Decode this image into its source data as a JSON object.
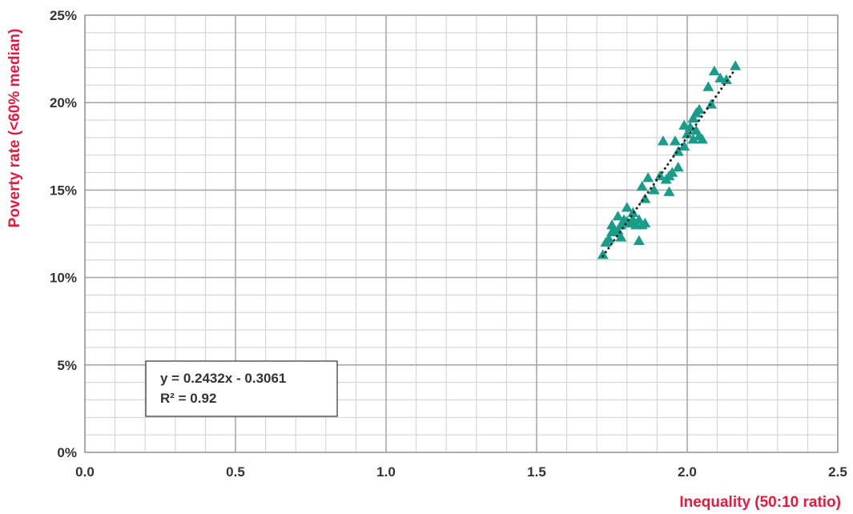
{
  "chart_data": {
    "type": "scatter",
    "xlabel": "Inequality (50:10 ratio)",
    "ylabel": "Poverty rate (<60% median)",
    "xlim": [
      0,
      2.5
    ],
    "ylim": [
      0,
      0.25
    ],
    "x_ticks": [
      "0.0",
      "0.5",
      "1.0",
      "1.5",
      "2.0",
      "2.5"
    ],
    "y_ticks": [
      "0%",
      "5%",
      "10%",
      "15%",
      "20%",
      "25%"
    ],
    "x_tick_values": [
      0,
      0.5,
      1.0,
      1.5,
      2.0,
      2.5
    ],
    "y_tick_values": [
      0,
      0.05,
      0.1,
      0.15,
      0.2,
      0.25
    ],
    "grid": "on (major and minor)",
    "marker": "triangle",
    "colors": {
      "points": "#1a9c8a",
      "axis_title": "#e8193c",
      "trendline": "#222222",
      "grid": "#c8c8c8"
    },
    "points": [
      [
        1.72,
        0.113
      ],
      [
        1.73,
        0.12
      ],
      [
        1.74,
        0.122
      ],
      [
        1.75,
        0.126
      ],
      [
        1.75,
        0.13
      ],
      [
        1.76,
        0.126
      ],
      [
        1.77,
        0.127
      ],
      [
        1.78,
        0.13
      ],
      [
        1.77,
        0.135
      ],
      [
        1.78,
        0.123
      ],
      [
        1.79,
        0.133
      ],
      [
        1.8,
        0.132
      ],
      [
        1.8,
        0.14
      ],
      [
        1.81,
        0.131
      ],
      [
        1.82,
        0.133
      ],
      [
        1.82,
        0.137
      ],
      [
        1.83,
        0.13
      ],
      [
        1.84,
        0.121
      ],
      [
        1.84,
        0.133
      ],
      [
        1.85,
        0.13
      ],
      [
        1.86,
        0.131
      ],
      [
        1.85,
        0.152
      ],
      [
        1.86,
        0.145
      ],
      [
        1.87,
        0.157
      ],
      [
        1.89,
        0.15
      ],
      [
        1.91,
        0.158
      ],
      [
        1.92,
        0.178
      ],
      [
        1.93,
        0.156
      ],
      [
        1.94,
        0.158
      ],
      [
        1.94,
        0.149
      ],
      [
        1.95,
        0.16
      ],
      [
        1.96,
        0.178
      ],
      [
        1.97,
        0.163
      ],
      [
        1.97,
        0.172
      ],
      [
        1.99,
        0.175
      ],
      [
        1.99,
        0.187
      ],
      [
        2.0,
        0.182
      ],
      [
        2.01,
        0.186
      ],
      [
        2.02,
        0.179
      ],
      [
        2.02,
        0.191
      ],
      [
        2.03,
        0.184
      ],
      [
        2.03,
        0.194
      ],
      [
        2.04,
        0.196
      ],
      [
        2.04,
        0.181
      ],
      [
        2.05,
        0.179
      ],
      [
        2.07,
        0.209
      ],
      [
        2.08,
        0.199
      ],
      [
        2.09,
        0.218
      ],
      [
        2.11,
        0.214
      ],
      [
        2.13,
        0.213
      ],
      [
        2.16,
        0.221
      ]
    ],
    "trendline": {
      "slope": 0.2432,
      "intercept": -0.3061,
      "x_range": [
        1.72,
        2.16
      ]
    },
    "annotation": {
      "equation": "y = 0.2432x - 0.3061",
      "r2": "R² = 0.92"
    }
  }
}
